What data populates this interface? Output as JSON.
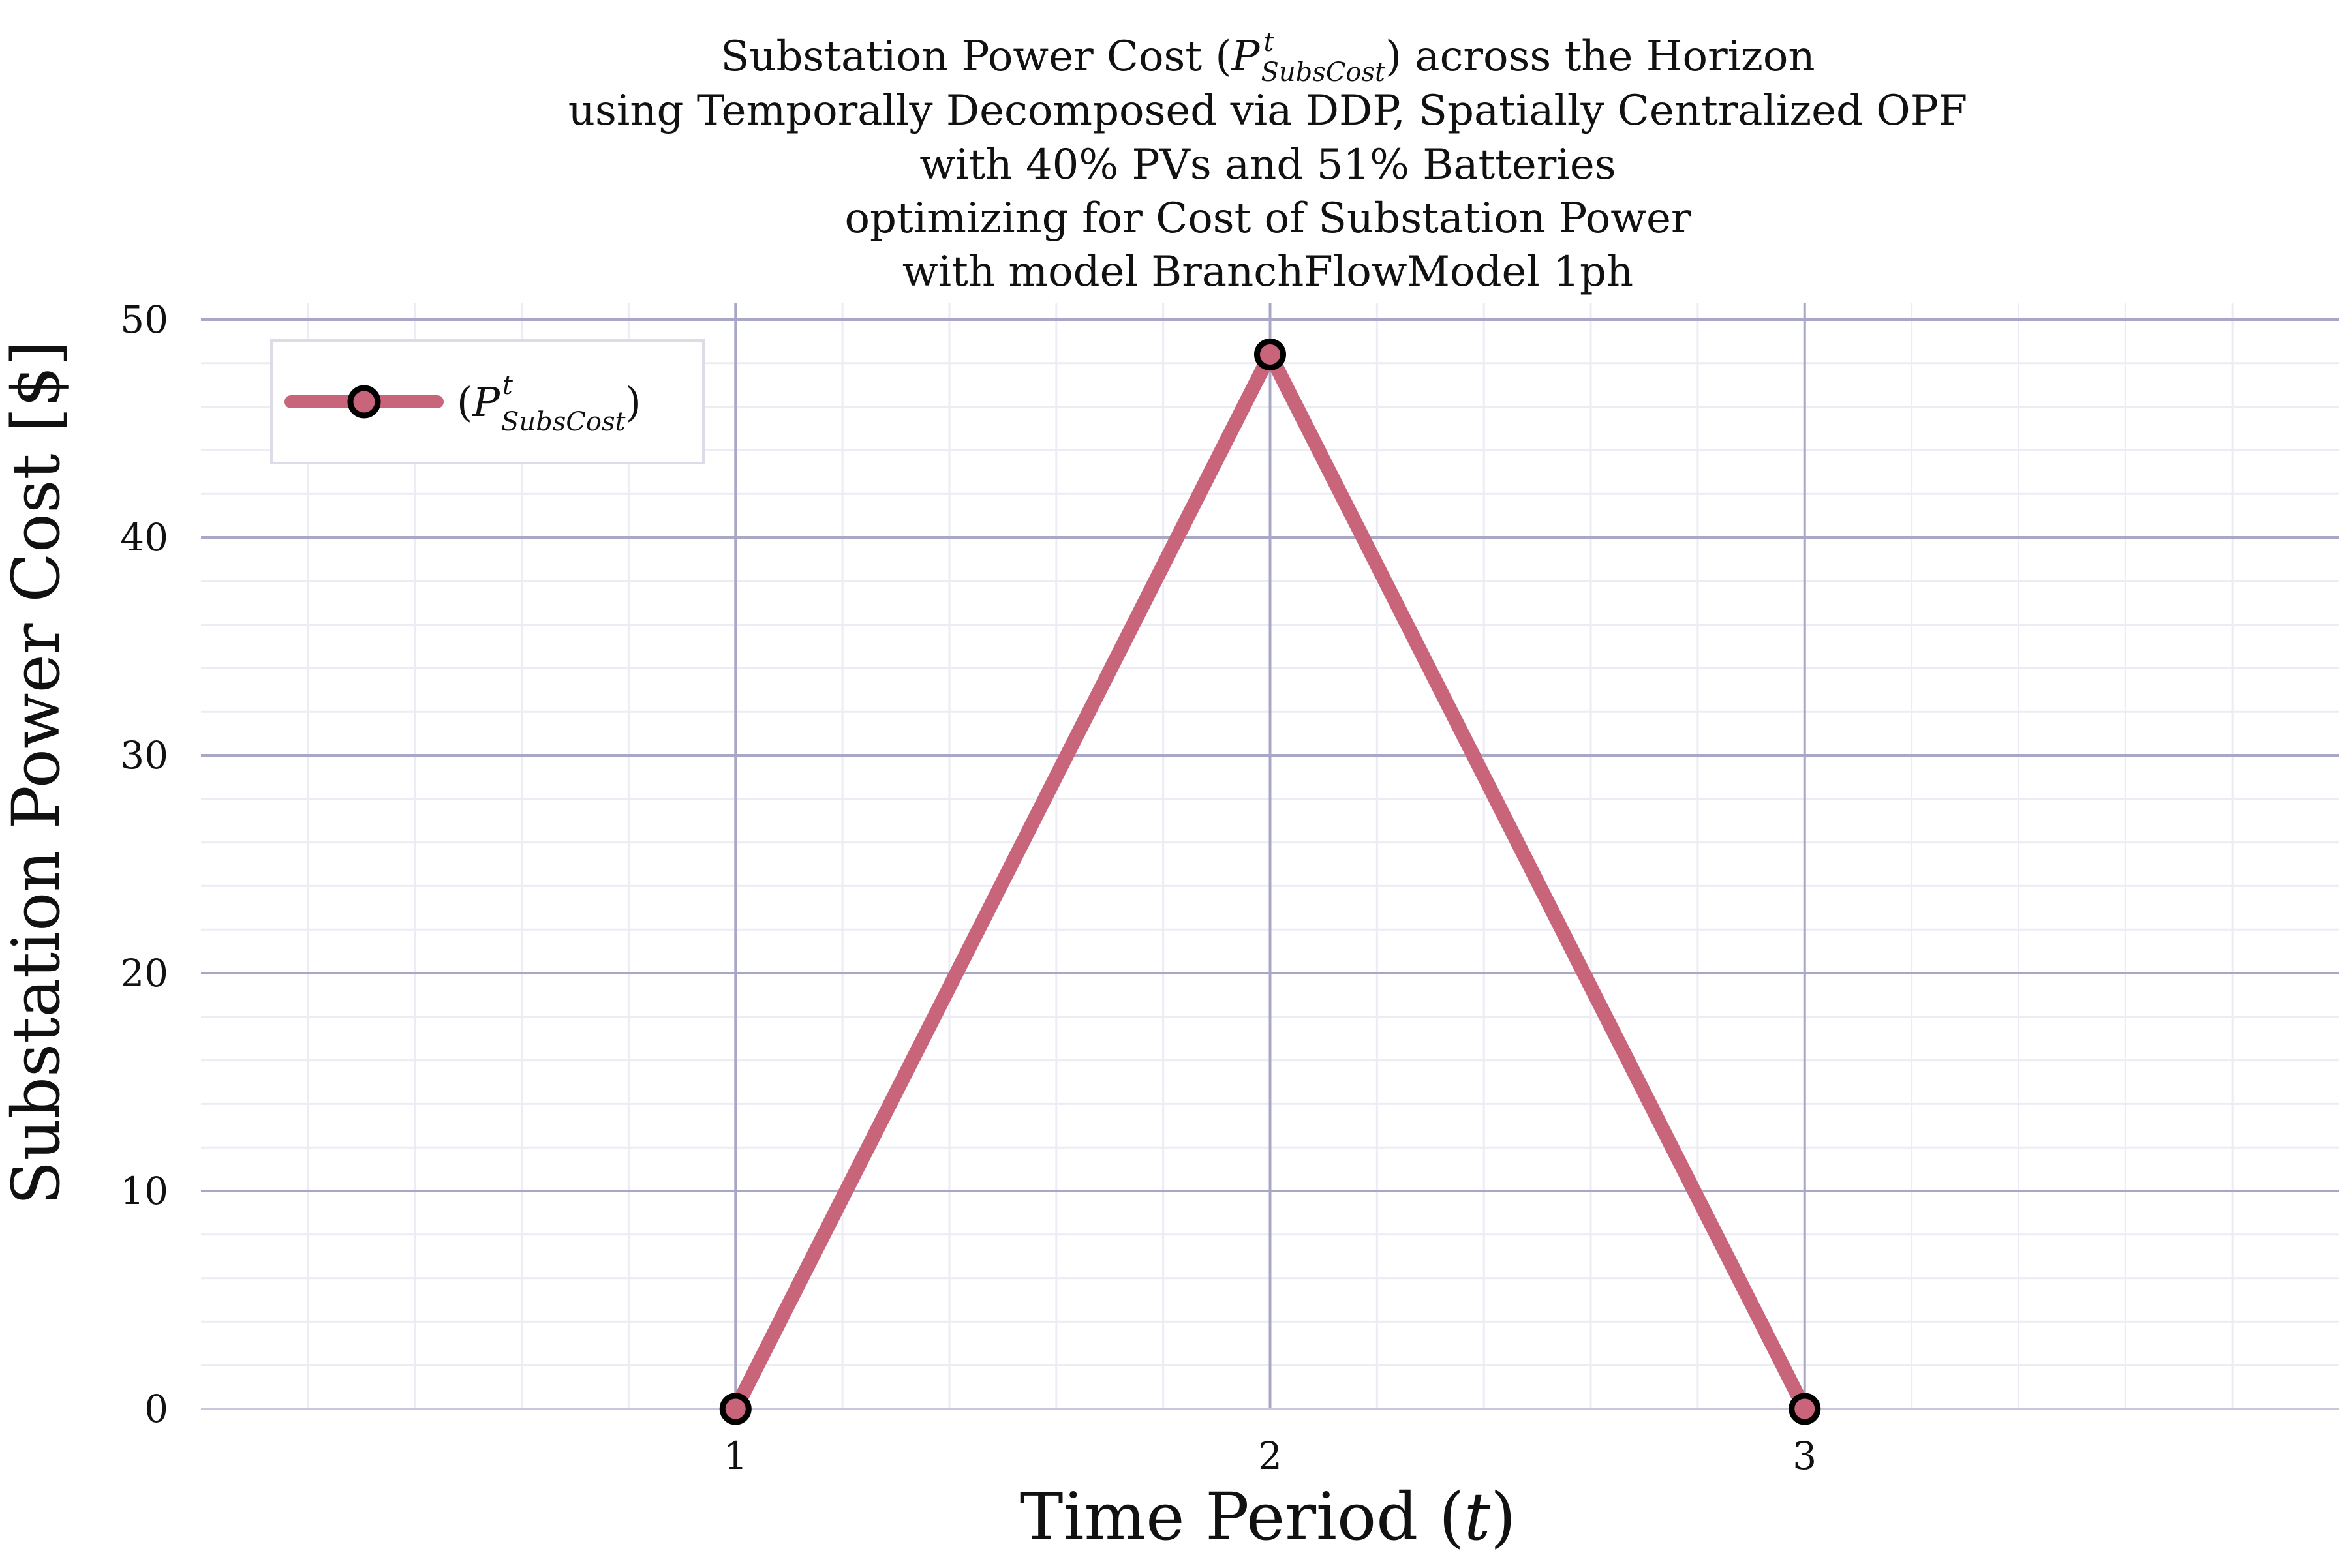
{
  "chart_data": {
    "type": "line",
    "title_lines": [
      "Substation Power Cost (P^t_SubsCost) across the Horizon",
      "using Temporally Decomposed via DDP, Spatially Centralized OPF",
      "with 40% PVs and 51% Batteries",
      "optimizing for Cost of Substation Power",
      "with model BranchFlowModel 1ph"
    ],
    "title_parts": {
      "before": "Substation Power Cost (",
      "symbol": "P",
      "superscript": "t",
      "subscript": "SubsCost",
      "after": ") across the Horizon"
    },
    "xlabel_parts": {
      "before": "Time Period (",
      "var": "t",
      "after": ")"
    },
    "ylabel": "Substation Power Cost [$]",
    "x": [
      1,
      2,
      3
    ],
    "x_ticks": [
      1,
      2,
      3
    ],
    "y_ticks": [
      0,
      10,
      20,
      30,
      40,
      50
    ],
    "xlim": [
      0,
      4
    ],
    "ylim": [
      0,
      50
    ],
    "grid": true,
    "minor_grid": true,
    "legend_position": "top-left",
    "series": [
      {
        "name": "(P^t_SubsCost)",
        "legend_parts": {
          "before": "(",
          "symbol": "P",
          "superscript": "t",
          "subscript": "SubsCost",
          "after": ")"
        },
        "color": "#c8657a",
        "marker_color": "#c8657a",
        "marker_edge": "#000000",
        "values": [
          0,
          48.4,
          0
        ]
      }
    ],
    "colors": {
      "major_grid": "#a8a8c6",
      "minor_grid": "#ececf4",
      "axis": "#c8c8da"
    }
  }
}
